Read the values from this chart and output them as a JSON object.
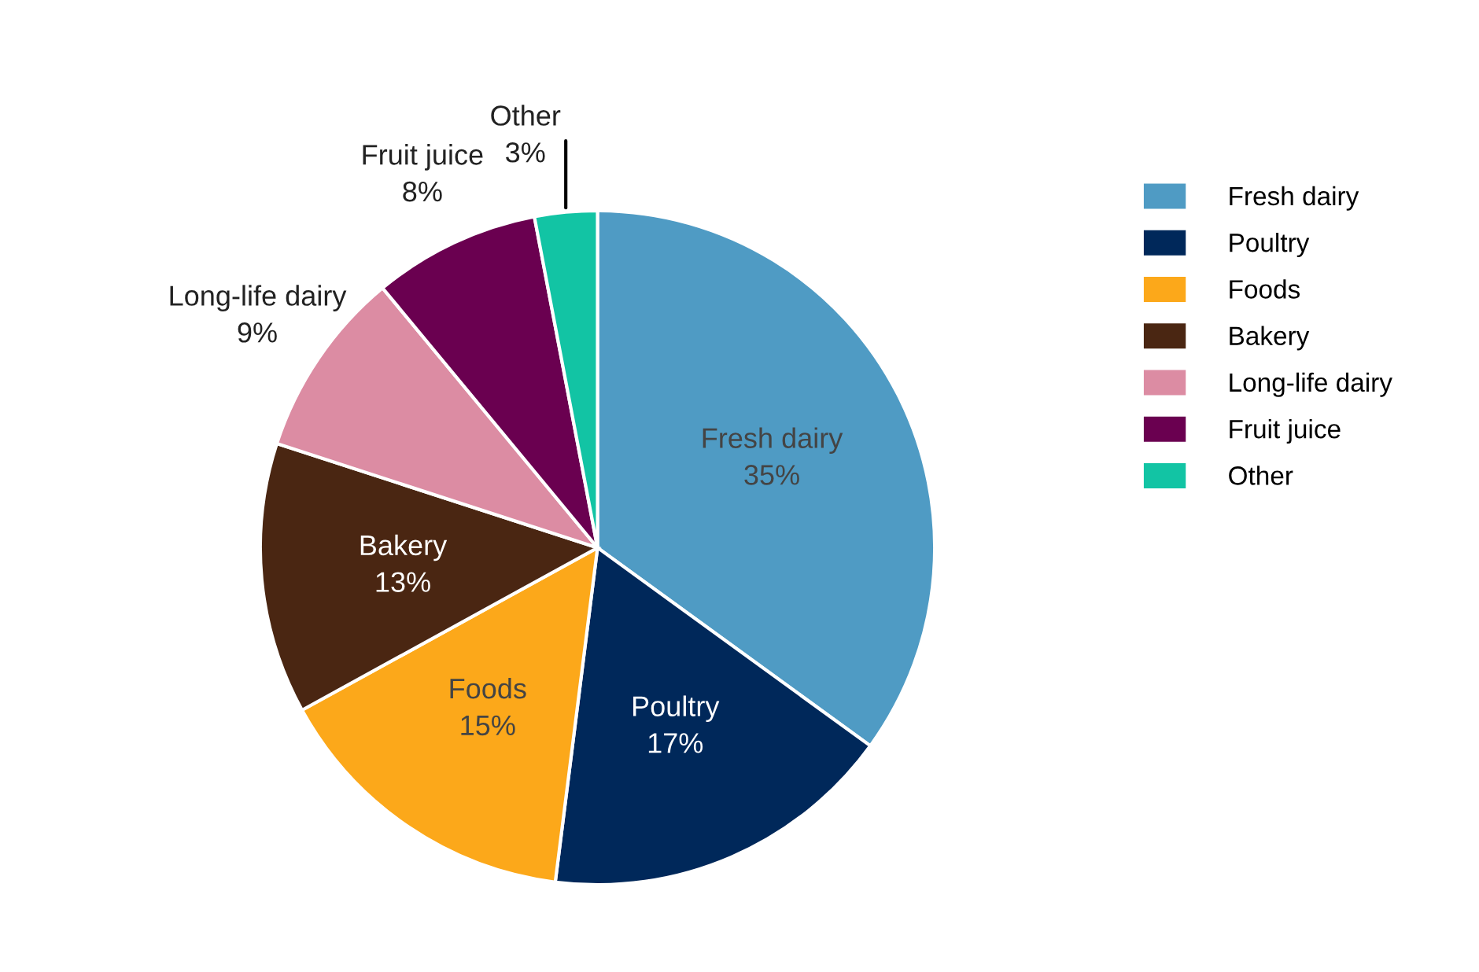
{
  "chart_data": {
    "type": "pie",
    "categories": [
      "Fresh dairy",
      "Poultry",
      "Foods",
      "Bakery",
      "Long-life dairy",
      "Fruit juice",
      "Other"
    ],
    "values": [
      35,
      17,
      15,
      13,
      9,
      8,
      3
    ],
    "colors": [
      "#4f9bc4",
      "#00285a",
      "#fca81a",
      "#4a2612",
      "#dc8ca3",
      "#6a0050",
      "#12c4a4"
    ],
    "value_labels": [
      "35%",
      "17%",
      "15%",
      "13%",
      "9%",
      "8%",
      "3%"
    ],
    "legend": "right"
  }
}
